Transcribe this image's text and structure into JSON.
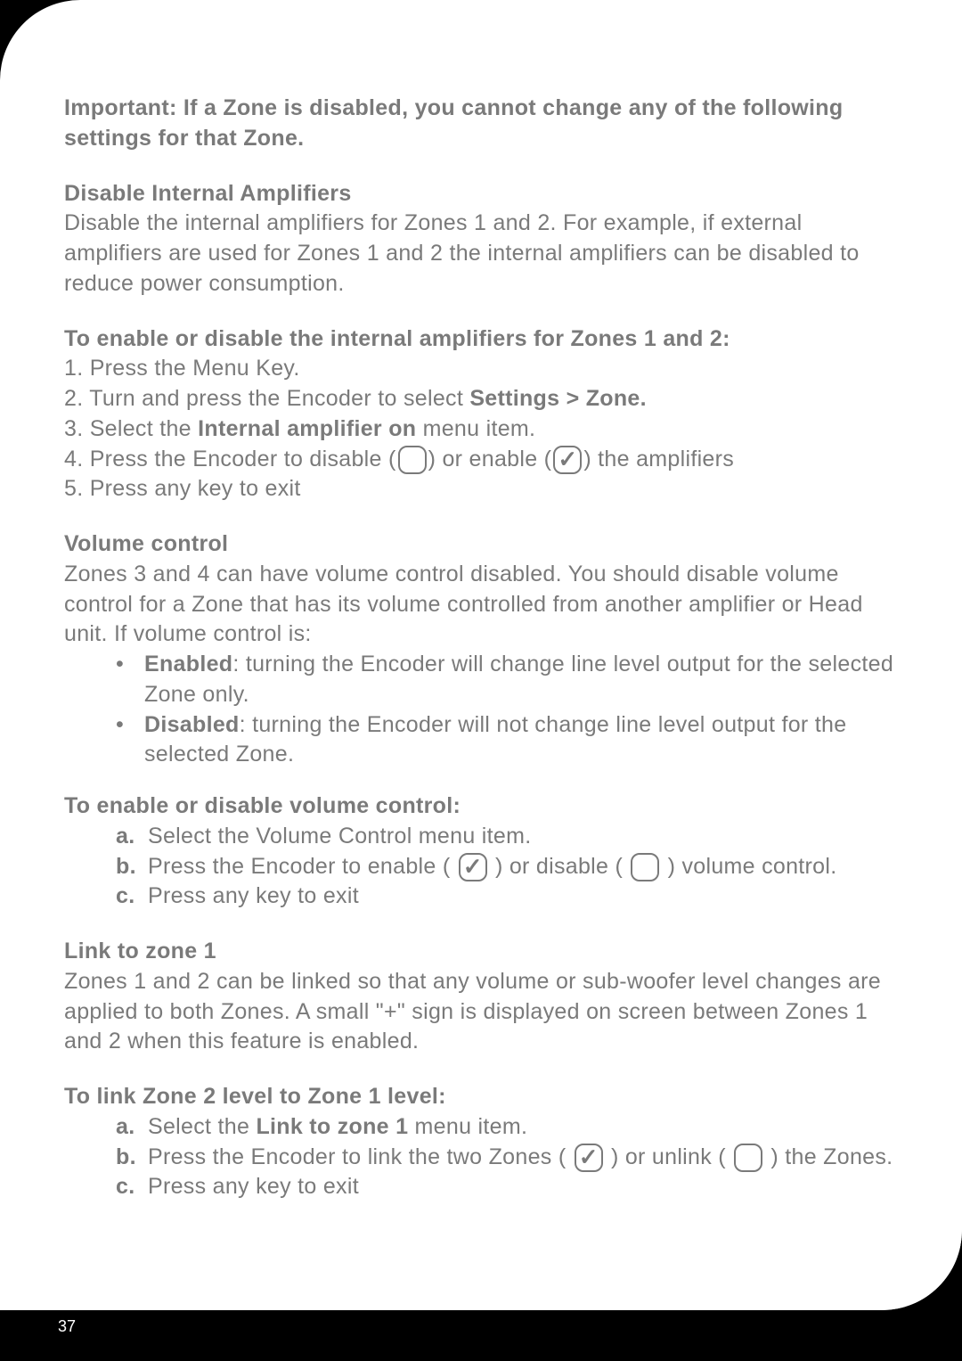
{
  "pageNumber": "37",
  "colors": {
    "text": "#7a7a7a",
    "background": "#ffffff",
    "outerBackground": "#000000",
    "pageNumberColor": "#ffffff"
  },
  "typography": {
    "bodyFontSize": 25,
    "lineHeight": 1.35
  },
  "sections": {
    "importantNote": {
      "text": "Important: If a Zone is disabled, you cannot change any of the following settings for that Zone."
    },
    "disableAmplifiers": {
      "heading": "Disable Internal Amplifiers",
      "body": "Disable the internal amplifiers for Zones 1 and 2. For example, if external amplifiers are used for Zones 1 and 2 the internal amplifiers can be disabled to reduce power consumption."
    },
    "enableDisableAmplifiers": {
      "heading": "To enable or disable the internal amplifiers for Zones 1 and 2:",
      "step1": "1. Press the Menu Key.",
      "step2a": "2. Turn and press the Encoder to select ",
      "step2b": "Settings > Zone.",
      "step3a": "3. Select the ",
      "step3b": "Internal amplifier on",
      "step3c": " menu item.",
      "step4a": "4. Press the Encoder to disable (",
      "step4b": ") or enable (",
      "step4c": ") the amplifiers",
      "step5": "5. Press any key to exit"
    },
    "volumeControl": {
      "heading": "Volume control",
      "body": "Zones 3 and 4 can have volume control disabled. You should disable volume control for a Zone that has its volume controlled from another amplifier or Head unit. If volume control is:",
      "bullet1Label": "Enabled",
      "bullet1Text": ": turning the Encoder will change line level output for the selected Zone only.",
      "bullet2Label": "Disabled",
      "bullet2Text": ": turning the Encoder will not change line level output for the selected Zone."
    },
    "enableDisableVolume": {
      "heading": "To enable or disable volume control:",
      "itemA_letter": "a.",
      "itemA_text": "Select the Volume Control menu item.",
      "itemB_letter": "b.",
      "itemB_text1": "Press the Encoder to enable ( ",
      "itemB_text2": " ) or disable ( ",
      "itemB_text3": " ) volume control.",
      "itemC_letter": "c.",
      "itemC_text": "Press any key to exit"
    },
    "linkZone": {
      "heading": "Link to zone 1",
      "body": "Zones 1 and 2 can be linked so that any volume or sub-woofer level changes are applied to both Zones. A small \"+\" sign is displayed on screen between Zones 1 and 2 when this feature is enabled."
    },
    "linkZoneLevel": {
      "heading": "To link Zone 2 level to Zone 1 level:",
      "itemA_letter": "a.",
      "itemA_text1": "Select the ",
      "itemA_text2": "Link to zone 1",
      "itemA_text3": " menu item.",
      "itemB_letter": "b.",
      "itemB_text1": "Press the Encoder to link the two Zones ( ",
      "itemB_text2": " ) or unlink ( ",
      "itemB_text3": " ) the Zones.",
      "itemC_letter": "c.",
      "itemC_text": "Press any key to exit"
    }
  }
}
